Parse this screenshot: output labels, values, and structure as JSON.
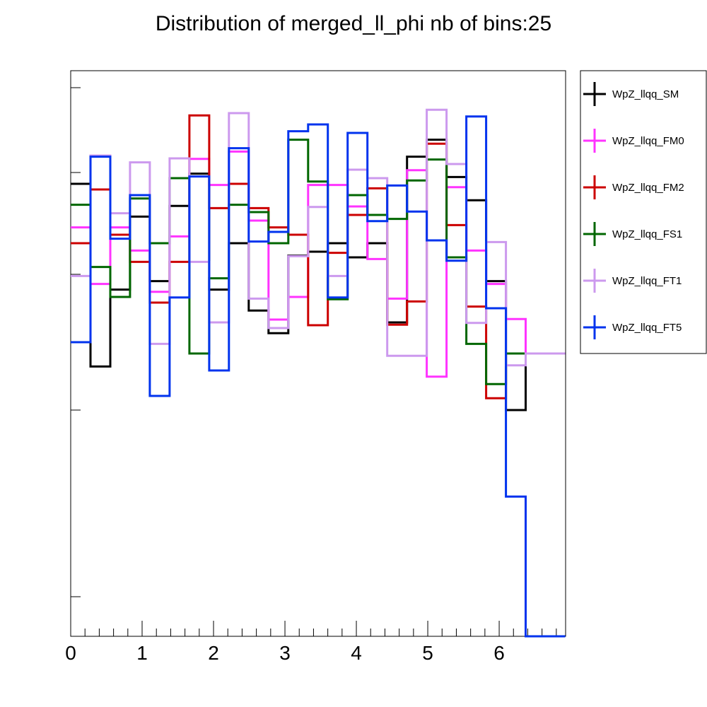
{
  "chart_data": {
    "type": "line",
    "subtype": "step-histogram",
    "title": "Distribution of merged_ll_phi nb of bins:25",
    "xlabel": "",
    "ylabel": "",
    "xlim": [
      0,
      6.93
    ],
    "ylim": [
      0,
      1
    ],
    "x_ticks": [
      "0",
      "1",
      "2",
      "3",
      "4",
      "5",
      "6"
    ],
    "y_tick_labels_shown": false,
    "grid": false,
    "legend_position": "right",
    "bin_edges": [
      0,
      0.277,
      0.554,
      0.831,
      1.108,
      1.385,
      1.662,
      1.939,
      2.216,
      2.493,
      2.77,
      3.047,
      3.324,
      3.601,
      3.878,
      4.155,
      4.432,
      4.709,
      4.986,
      5.263,
      5.54,
      5.817,
      6.094,
      6.371,
      6.648,
      6.925
    ],
    "series": [
      {
        "name": "WpZ_llqq_SM",
        "color": "#000000",
        "values": [
          0.8,
          0.477,
          0.613,
          0.742,
          0.628,
          0.761,
          0.818,
          0.613,
          0.695,
          0.576,
          0.536,
          0.673,
          0.68,
          0.695,
          0.67,
          0.695,
          0.555,
          0.848,
          0.878,
          0.812,
          0.771,
          0.628,
          0.4,
          0.5,
          0.5
        ]
      },
      {
        "name": "WpZ_llqq_FM0",
        "color": "#ff33ff",
        "values": [
          0.723,
          0.623,
          0.723,
          0.682,
          0.609,
          0.707,
          0.844,
          0.798,
          0.857,
          0.735,
          0.56,
          0.6,
          0.798,
          0.798,
          0.76,
          0.667,
          0.597,
          0.824,
          0.459,
          0.794,
          0.682,
          0.623,
          0.561,
          0.5,
          0.5
        ]
      },
      {
        "name": "WpZ_llqq_FM2",
        "color": "#cc0000",
        "values": [
          0.695,
          0.79,
          0.71,
          0.662,
          0.59,
          0.662,
          0.921,
          0.757,
          0.8,
          0.757,
          0.723,
          0.71,
          0.55,
          0.678,
          0.745,
          0.792,
          0.551,
          0.592,
          0.871,
          0.727,
          0.583,
          0.421,
          0.5,
          0.5,
          0.5
        ]
      },
      {
        "name": "WpZ_llqq_FS1",
        "color": "#006600",
        "values": [
          0.763,
          0.653,
          0.6,
          0.774,
          0.695,
          0.81,
          0.5,
          0.633,
          0.763,
          0.75,
          0.695,
          0.878,
          0.804,
          0.596,
          0.78,
          0.745,
          0.738,
          0.806,
          0.843,
          0.67,
          0.517,
          0.446,
          0.5,
          0.5,
          0.5
        ]
      },
      {
        "name": "WpZ_llqq_FT1",
        "color": "#cc99ee",
        "values": [
          0.637,
          0.85,
          0.748,
          0.838,
          0.517,
          0.845,
          0.662,
          0.555,
          0.925,
          0.597,
          0.545,
          0.672,
          0.759,
          0.637,
          0.825,
          0.81,
          0.496,
          0.496,
          0.931,
          0.835,
          0.554,
          0.697,
          0.479,
          0.5,
          0.5
        ]
      },
      {
        "name": "WpZ_llqq_FT5",
        "color": "#0033ee",
        "values": [
          0.52,
          0.848,
          0.703,
          0.78,
          0.425,
          0.599,
          0.813,
          0.47,
          0.863,
          0.698,
          0.715,
          0.893,
          0.905,
          0.599,
          0.89,
          0.734,
          0.797,
          0.751,
          0.7,
          0.664,
          0.919,
          0.58,
          0.247,
          0.0,
          0.0
        ]
      }
    ]
  }
}
